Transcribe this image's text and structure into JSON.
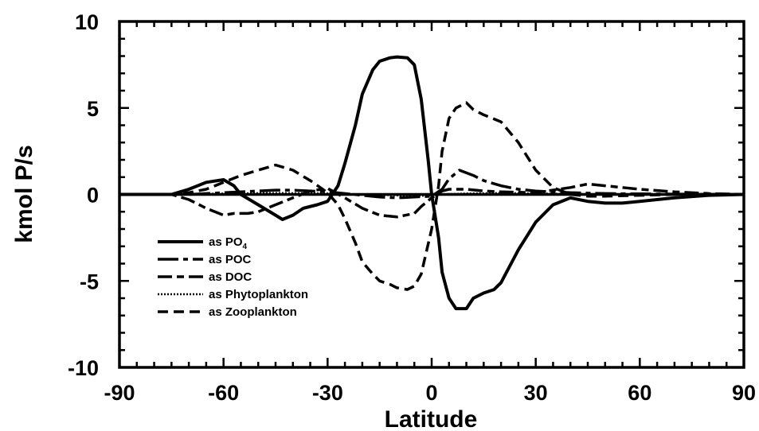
{
  "chart_data": {
    "type": "line",
    "title": "",
    "xlabel": "Latitude",
    "ylabel": "kmol P/s",
    "xlim": [
      -90,
      90
    ],
    "ylim": [
      -10,
      10
    ],
    "xticks": [
      -90,
      -60,
      -30,
      0,
      30,
      60,
      90
    ],
    "yticks": [
      -10,
      -5,
      0,
      5,
      10
    ],
    "xtick_labels": [
      "-90",
      "-60",
      "-30",
      "0",
      "30",
      "60",
      "90"
    ],
    "ytick_labels": [
      "-10",
      "-5",
      "0",
      "5",
      "10"
    ],
    "grid": false,
    "legend_position": "lower-left",
    "series": [
      {
        "name": "as PO",
        "name_subscript": "4",
        "style": "solid",
        "x": [
          -90,
          -75,
          -70,
          -65,
          -60,
          -57,
          -55,
          -50,
          -45,
          -43,
          -40,
          -37,
          -33,
          -30,
          -27,
          -25,
          -22,
          -20,
          -17,
          -15,
          -12,
          -10,
          -7,
          -5,
          -3,
          -1,
          0,
          2,
          3,
          5,
          7,
          10,
          12,
          15,
          18,
          20,
          25,
          30,
          35,
          40,
          45,
          50,
          55,
          60,
          70,
          80,
          90
        ],
        "y": [
          0,
          0,
          0.3,
          0.7,
          0.85,
          0.5,
          0,
          -0.6,
          -1.2,
          -1.45,
          -1.2,
          -0.8,
          -0.6,
          -0.4,
          0.5,
          1.8,
          4.0,
          5.8,
          7.2,
          7.7,
          7.9,
          7.95,
          7.9,
          7.5,
          5.5,
          2.0,
          0,
          -2.5,
          -4.5,
          -6.0,
          -6.6,
          -6.6,
          -6.0,
          -5.7,
          -5.5,
          -5.1,
          -3.2,
          -1.6,
          -0.6,
          -0.2,
          -0.4,
          -0.5,
          -0.5,
          -0.4,
          -0.2,
          -0.05,
          0
        ]
      },
      {
        "name": "as POC",
        "style": "long-dash-short-dash",
        "x": [
          -90,
          -75,
          -70,
          -65,
          -60,
          -55,
          -50,
          -45,
          -40,
          -35,
          -30,
          -25,
          -20,
          -15,
          -10,
          -5,
          0,
          3,
          5,
          8,
          12,
          15,
          20,
          25,
          30,
          40,
          50,
          60,
          70,
          80,
          90
        ],
        "y": [
          0,
          0,
          0,
          0.05,
          0.1,
          0.15,
          0.2,
          0.25,
          0.25,
          0.2,
          0.15,
          0.05,
          -0.05,
          -0.15,
          -0.2,
          -0.15,
          -0.1,
          0.3,
          0.9,
          1.4,
          1.1,
          0.8,
          0.5,
          0.3,
          0.2,
          0.1,
          0.05,
          0.03,
          0.02,
          0.01,
          0
        ]
      },
      {
        "name": "as DOC",
        "style": "long-dash-dash",
        "x": [
          -90,
          -75,
          -70,
          -65,
          -60,
          -57,
          -53,
          -50,
          -45,
          -40,
          -35,
          -30,
          -25,
          -20,
          -15,
          -10,
          -5,
          -3,
          0,
          3,
          5,
          10,
          15,
          20,
          30,
          40,
          45,
          50,
          60,
          70,
          80,
          90
        ],
        "y": [
          0,
          0,
          -0.3,
          -0.8,
          -1.2,
          -1.1,
          -1.1,
          -1.0,
          -0.6,
          -0.2,
          0.2,
          0.35,
          -0.2,
          -0.8,
          -1.2,
          -1.3,
          -1.1,
          -0.7,
          -0.2,
          0.2,
          0.3,
          0.3,
          0.2,
          0.15,
          0.1,
          0.4,
          0.6,
          0.5,
          0.3,
          0.15,
          0.05,
          0
        ]
      },
      {
        "name": "as Phytoplankton",
        "style": "dotted",
        "x": [
          -90,
          -75,
          -60,
          -45,
          -30,
          -20,
          -10,
          -2,
          0,
          2,
          10,
          20,
          30,
          45,
          60,
          75,
          90
        ],
        "y": [
          0,
          0,
          0.05,
          0.08,
          0.05,
          0,
          -0.05,
          -0.08,
          -0.05,
          0,
          0.05,
          0.08,
          0.05,
          0.02,
          0.02,
          0.01,
          0
        ]
      },
      {
        "name": "as Zooplankton",
        "style": "dashed",
        "x": [
          -90,
          -75,
          -70,
          -65,
          -60,
          -55,
          -50,
          -45,
          -40,
          -35,
          -30,
          -27,
          -25,
          -22,
          -20,
          -17,
          -15,
          -12,
          -10,
          -7,
          -5,
          -3,
          0,
          2,
          3,
          5,
          7,
          10,
          12,
          15,
          20,
          25,
          30,
          35,
          40,
          45,
          50,
          60,
          70,
          80,
          90
        ],
        "y": [
          0,
          0,
          0.1,
          0.3,
          0.7,
          1.1,
          1.4,
          1.7,
          1.4,
          0.8,
          0.1,
          -0.6,
          -1.4,
          -2.8,
          -3.9,
          -4.6,
          -5.0,
          -5.2,
          -5.4,
          -5.5,
          -5.3,
          -4.6,
          -2.0,
          0.5,
          2.5,
          4.4,
          5.0,
          5.3,
          4.9,
          4.6,
          4.2,
          3.0,
          1.4,
          0.4,
          0,
          -0.1,
          -0.1,
          -0.05,
          0,
          0,
          0
        ]
      }
    ]
  }
}
